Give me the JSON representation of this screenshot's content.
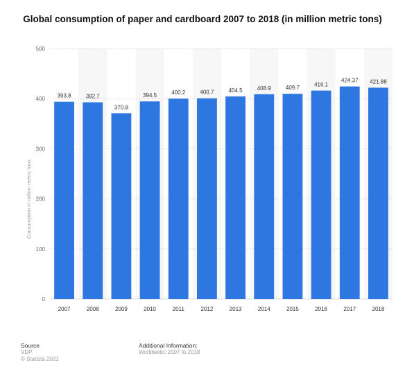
{
  "chart_data": {
    "type": "bar",
    "title": "Global consumption of paper and cardboard 2007 to 2018 (in million metric tons)",
    "xlabel": "",
    "ylabel": "Consumption in million metric tons",
    "categories": [
      "2007",
      "2008",
      "2009",
      "2010",
      "2011",
      "2012",
      "2013",
      "2014",
      "2015",
      "2016",
      "2017",
      "2018"
    ],
    "values": [
      393.8,
      392.7,
      370.8,
      394.5,
      400.2,
      400.7,
      404.5,
      408.9,
      409.7,
      416.1,
      424.37,
      421.88
    ],
    "value_labels": [
      "393.8",
      "392.7",
      "370.8",
      "394.5",
      "400.2",
      "400.7",
      "404.5",
      "408.9",
      "409.7",
      "416.1",
      "424.37",
      "421.88"
    ],
    "yticks": [
      "0",
      "100",
      "200",
      "300",
      "400",
      "500"
    ],
    "ylim": [
      0,
      500
    ],
    "grid": true,
    "legend": "none",
    "bar_color": "#2f77e0"
  },
  "footer": {
    "source_heading": "Source",
    "source_name": "VDP",
    "copyright": "© Statista 2021",
    "info_heading": "Additional Information:",
    "info_text": "Worldwide; 2007 to 2018"
  }
}
